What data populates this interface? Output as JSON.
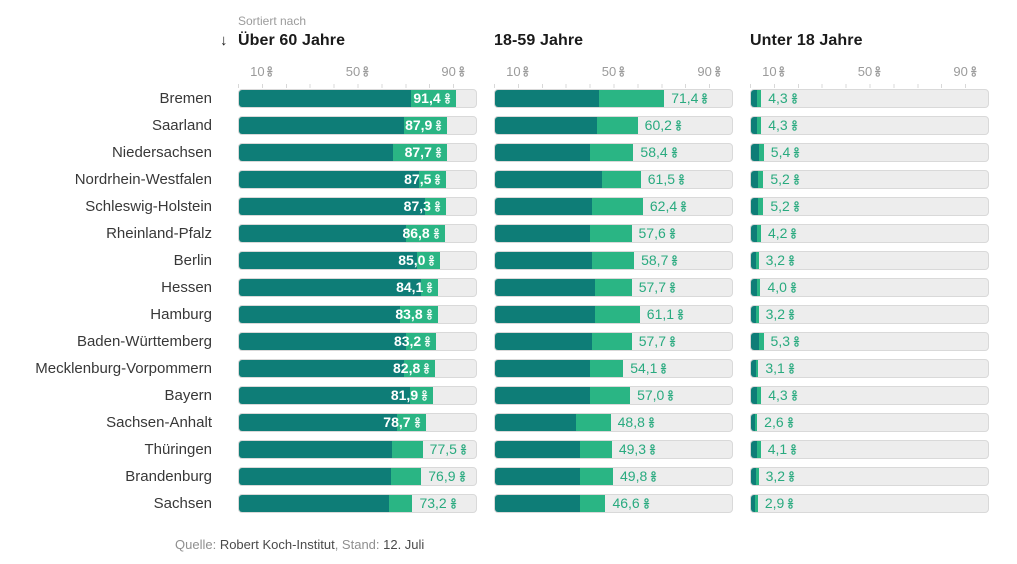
{
  "header": {
    "sorted_by_label": "Sortiert nach",
    "sort_arrow": "↓",
    "columns": [
      "Über 60 Jahre",
      "18-59 Jahre",
      "Unter 18 Jahre"
    ]
  },
  "axis": {
    "ticks": [
      "10",
      "50",
      "90"
    ],
    "tick_positions": [
      10,
      50,
      90
    ],
    "unit": "percent",
    "range": [
      0,
      100
    ]
  },
  "colors": {
    "bar_dark": "#0e7d77",
    "bar_light": "#2ab584",
    "track": "#ededed",
    "track_border": "#d9d9d9",
    "label_outside": "#29aa7f",
    "label_inside": "#ffffff"
  },
  "chart_data": {
    "type": "bar",
    "orientation": "horizontal",
    "grid": "ticks-only",
    "legend": "none",
    "xlim": [
      0,
      100
    ],
    "group_titles": [
      "Über 60 Jahre",
      "18-59 Jahre",
      "Unter 18 Jahre"
    ],
    "note": "Jeder Balken hat zwei Segmente; nur das Balkenende ist beschriftet. split_est = geschätzte Grenze des dunklen Segments (nicht beschriftet, aus Pixeln geschätzt).",
    "categories": [
      "Bremen",
      "Saarland",
      "Niedersachsen",
      "Nordrhein-Westfalen",
      "Schleswig-Holstein",
      "Rheinland-Pfalz",
      "Berlin",
      "Hessen",
      "Hamburg",
      "Baden-Württemberg",
      "Mecklenburg-Vorpommern",
      "Bayern",
      "Sachsen-Anhalt",
      "Thüringen",
      "Brandenburg",
      "Sachsen"
    ],
    "rows": [
      {
        "state": "Bremen",
        "ueber60": {
          "pct": 91.4,
          "label": "91,4",
          "split_est": 72.5,
          "label_inside": true
        },
        "j1859": {
          "pct": 71.4,
          "label": "71,4",
          "split_est": 44,
          "label_inside": false
        },
        "u18": {
          "pct": 4.3,
          "label": "4,3",
          "split_est": 2.6,
          "label_inside": false
        }
      },
      {
        "state": "Saarland",
        "ueber60": {
          "pct": 87.9,
          "label": "87,9",
          "split_est": 69.5,
          "label_inside": true
        },
        "j1859": {
          "pct": 60.2,
          "label": "60,2",
          "split_est": 43,
          "label_inside": false
        },
        "u18": {
          "pct": 4.3,
          "label": "4,3",
          "split_est": 2.6,
          "label_inside": false
        }
      },
      {
        "state": "Niedersachsen",
        "ueber60": {
          "pct": 87.7,
          "label": "87,7",
          "split_est": 65,
          "label_inside": true
        },
        "j1859": {
          "pct": 58.4,
          "label": "58,4",
          "split_est": 40,
          "label_inside": false
        },
        "u18": {
          "pct": 5.4,
          "label": "5,4",
          "split_est": 3.2,
          "label_inside": false
        }
      },
      {
        "state": "Nordrhein-Westfalen",
        "ueber60": {
          "pct": 87.5,
          "label": "87,5",
          "split_est": 76,
          "label_inside": true
        },
        "j1859": {
          "pct": 61.5,
          "label": "61,5",
          "split_est": 45,
          "label_inside": false
        },
        "u18": {
          "pct": 5.2,
          "label": "5,2",
          "split_est": 3.1,
          "label_inside": false
        }
      },
      {
        "state": "Schleswig-Holstein",
        "ueber60": {
          "pct": 87.3,
          "label": "87,3",
          "split_est": 78.5,
          "label_inside": true
        },
        "j1859": {
          "pct": 62.4,
          "label": "62,4",
          "split_est": 41,
          "label_inside": false
        },
        "u18": {
          "pct": 5.2,
          "label": "5,2",
          "split_est": 3.1,
          "label_inside": false
        }
      },
      {
        "state": "Rheinland-Pfalz",
        "ueber60": {
          "pct": 86.8,
          "label": "86,8",
          "split_est": 70.5,
          "label_inside": true
        },
        "j1859": {
          "pct": 57.6,
          "label": "57,6",
          "split_est": 40,
          "label_inside": false
        },
        "u18": {
          "pct": 4.2,
          "label": "4,2",
          "split_est": 2.5,
          "label_inside": false
        }
      },
      {
        "state": "Berlin",
        "ueber60": {
          "pct": 85.0,
          "label": "85,0",
          "split_est": 75,
          "label_inside": true
        },
        "j1859": {
          "pct": 58.7,
          "label": "58,7",
          "split_est": 41,
          "label_inside": false
        },
        "u18": {
          "pct": 3.2,
          "label": "3,2",
          "split_est": 1.9,
          "label_inside": false
        }
      },
      {
        "state": "Hessen",
        "ueber60": {
          "pct": 84.1,
          "label": "84,1",
          "split_est": 77,
          "label_inside": true
        },
        "j1859": {
          "pct": 57.7,
          "label": "57,7",
          "split_est": 42,
          "label_inside": false
        },
        "u18": {
          "pct": 4.0,
          "label": "4,0",
          "split_est": 2.4,
          "label_inside": false
        }
      },
      {
        "state": "Hamburg",
        "ueber60": {
          "pct": 83.8,
          "label": "83,8",
          "split_est": 68,
          "label_inside": true
        },
        "j1859": {
          "pct": 61.1,
          "label": "61,1",
          "split_est": 42,
          "label_inside": false
        },
        "u18": {
          "pct": 3.2,
          "label": "3,2",
          "split_est": 1.9,
          "label_inside": false
        }
      },
      {
        "state": "Baden-Württemberg",
        "ueber60": {
          "pct": 83.2,
          "label": "83,2",
          "split_est": 70.5,
          "label_inside": true
        },
        "j1859": {
          "pct": 57.7,
          "label": "57,7",
          "split_est": 41,
          "label_inside": false
        },
        "u18": {
          "pct": 5.3,
          "label": "5,3",
          "split_est": 3.2,
          "label_inside": false
        }
      },
      {
        "state": "Mecklenburg-Vorpommern",
        "ueber60": {
          "pct": 82.8,
          "label": "82,8",
          "split_est": 69.5,
          "label_inside": true
        },
        "j1859": {
          "pct": 54.1,
          "label": "54,1",
          "split_est": 40,
          "label_inside": false
        },
        "u18": {
          "pct": 3.1,
          "label": "3,1",
          "split_est": 1.9,
          "label_inside": false
        }
      },
      {
        "state": "Bayern",
        "ueber60": {
          "pct": 81.9,
          "label": "81,9",
          "split_est": 72,
          "label_inside": true
        },
        "j1859": {
          "pct": 57.0,
          "label": "57,0",
          "split_est": 40,
          "label_inside": false
        },
        "u18": {
          "pct": 4.3,
          "label": "4,3",
          "split_est": 2.6,
          "label_inside": false
        }
      },
      {
        "state": "Sachsen-Anhalt",
        "ueber60": {
          "pct": 78.7,
          "label": "78,7",
          "split_est": 66.5,
          "label_inside": true
        },
        "j1859": {
          "pct": 48.8,
          "label": "48,8",
          "split_est": 34,
          "label_inside": false
        },
        "u18": {
          "pct": 2.6,
          "label": "2,6",
          "split_est": 1.6,
          "label_inside": false
        }
      },
      {
        "state": "Thüringen",
        "ueber60": {
          "pct": 77.5,
          "label": "77,5",
          "split_est": 64.5,
          "label_inside": false
        },
        "j1859": {
          "pct": 49.3,
          "label": "49,3",
          "split_est": 36,
          "label_inside": false
        },
        "u18": {
          "pct": 4.1,
          "label": "4,1",
          "split_est": 2.5,
          "label_inside": false
        }
      },
      {
        "state": "Brandenburg",
        "ueber60": {
          "pct": 76.9,
          "label": "76,9",
          "split_est": 64,
          "label_inside": false
        },
        "j1859": {
          "pct": 49.8,
          "label": "49,8",
          "split_est": 36,
          "label_inside": false
        },
        "u18": {
          "pct": 3.2,
          "label": "3,2",
          "split_est": 1.9,
          "label_inside": false
        }
      },
      {
        "state": "Sachsen",
        "ueber60": {
          "pct": 73.2,
          "label": "73,2",
          "split_est": 63.5,
          "label_inside": false
        },
        "j1859": {
          "pct": 46.6,
          "label": "46,6",
          "split_est": 36,
          "label_inside": false
        },
        "u18": {
          "pct": 2.9,
          "label": "2,9",
          "split_est": 1.7,
          "label_inside": false
        }
      }
    ]
  },
  "footer": {
    "source_prefix": "Quelle: ",
    "source": "Robert Koch-Institut",
    "stand_prefix": ", Stand: ",
    "stand": "12. Juli"
  }
}
